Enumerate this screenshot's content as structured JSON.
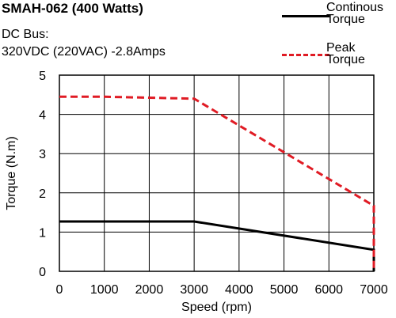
{
  "header": {
    "title": "SMAH-062 (400 Watts)",
    "line1": "DC Bus:",
    "line2": "320VDC (220VAC)  -2.8Amps"
  },
  "legend": {
    "continuous": [
      "Continous",
      "Torque"
    ],
    "peak": [
      "Peak",
      "Torque"
    ]
  },
  "chart_data": {
    "type": "line",
    "title": "SMAH-062 (400 Watts)",
    "xlabel": "Speed (rpm)",
    "ylabel": "Torque (N.m)",
    "xlim": [
      0,
      7000
    ],
    "ylim": [
      0,
      5
    ],
    "xticks": [
      0,
      1000,
      2000,
      3000,
      4000,
      5000,
      6000,
      7000
    ],
    "yticks": [
      0,
      1,
      2,
      3,
      4,
      5
    ],
    "grid": true,
    "legend_position": "top-right",
    "series": [
      {
        "name": "Continous Torque",
        "color": "#000000",
        "style": "solid",
        "x": [
          0,
          3000,
          7000,
          7000
        ],
        "y": [
          1.27,
          1.27,
          0.55,
          0
        ]
      },
      {
        "name": "Peak Torque",
        "color": "#e01b24",
        "style": "dashed",
        "x": [
          0,
          1000,
          3000,
          7000,
          7000
        ],
        "y": [
          4.45,
          4.45,
          4.4,
          1.67,
          0
        ]
      }
    ]
  }
}
